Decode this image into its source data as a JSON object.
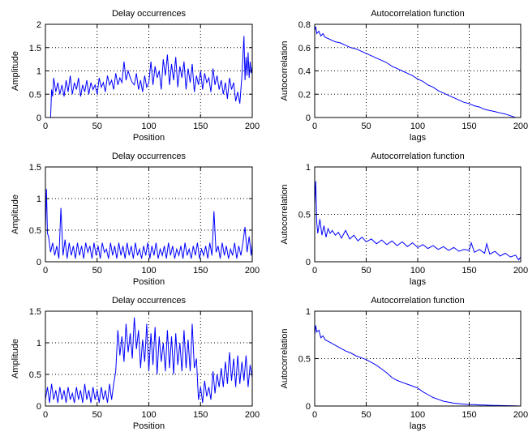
{
  "figure": {
    "background": "#ffffff",
    "line_color": "#0000ff",
    "grid_color": "#000000"
  },
  "chart_data": [
    {
      "type": "line",
      "title": "Delay occurrences",
      "xlabel": "Position",
      "ylabel": "Amplitude",
      "xlim": [
        0,
        200
      ],
      "ylim": [
        0,
        2
      ],
      "xticks": [
        0,
        50,
        100,
        150,
        200
      ],
      "yticks": [
        0,
        0.5,
        1,
        1.5,
        2
      ],
      "xtick_labels": [
        "0",
        "50",
        "100",
        "150",
        "200"
      ],
      "ytick_labels": [
        "0",
        "0.5",
        "1",
        "1.5",
        "2"
      ],
      "grid": true,
      "series": [
        {
          "color": "#0000ff",
          "x": [
            5,
            6,
            7,
            8,
            10,
            12,
            14,
            16,
            18,
            20,
            22,
            24,
            26,
            28,
            30,
            32,
            34,
            36,
            38,
            40,
            42,
            44,
            46,
            48,
            50,
            52,
            54,
            56,
            58,
            60,
            62,
            64,
            66,
            68,
            70,
            72,
            74,
            76,
            78,
            80,
            82,
            84,
            86,
            88,
            90,
            92,
            94,
            96,
            98,
            100,
            102,
            104,
            106,
            108,
            110,
            112,
            114,
            116,
            118,
            120,
            122,
            124,
            126,
            128,
            130,
            132,
            134,
            136,
            138,
            140,
            142,
            144,
            146,
            148,
            150,
            152,
            154,
            156,
            158,
            160,
            162,
            164,
            166,
            168,
            170,
            172,
            174,
            176,
            178,
            180,
            182,
            184,
            186,
            188,
            190,
            192,
            193,
            194,
            195,
            196,
            197,
            198,
            199,
            200
          ],
          "y": [
            0,
            0.6,
            0.45,
            0.85,
            0.55,
            0.75,
            0.5,
            0.7,
            0.45,
            0.8,
            0.55,
            0.9,
            0.5,
            0.75,
            0.6,
            0.85,
            0.45,
            0.7,
            0.55,
            0.8,
            0.5,
            0.75,
            0.6,
            0.7,
            0.5,
            0.85,
            0.65,
            0.75,
            0.55,
            0.9,
            0.7,
            0.8,
            0.6,
            0.95,
            0.7,
            0.85,
            0.75,
            1.2,
            0.8,
            1.0,
            0.85,
            0.75,
            0.7,
            0.95,
            0.6,
            0.8,
            0.55,
            0.9,
            0.65,
            0.75,
            1.2,
            0.7,
            1.1,
            0.85,
            1.0,
            0.6,
            1.25,
            0.9,
            1.35,
            0.7,
            1.15,
            0.8,
            1.3,
            0.65,
            1.1,
            0.85,
            1.2,
            0.6,
            1.05,
            0.75,
            1.15,
            0.55,
            0.9,
            0.7,
            1.0,
            0.6,
            0.95,
            0.75,
            0.85,
            0.55,
            1.05,
            0.7,
            0.9,
            0.6,
            0.8,
            0.5,
            0.75,
            0.4,
            0.85,
            0.6,
            0.75,
            0.35,
            0.55,
            0.3,
            0.9,
            1.75,
            0.8,
            1.3,
            0.9,
            1.4,
            0.85,
            1.2,
            0.95,
            1.1
          ]
        }
      ]
    },
    {
      "type": "line",
      "title": "Autocorrelation function",
      "xlabel": "lags",
      "ylabel": "Autocorrelation",
      "xlim": [
        0,
        200
      ],
      "ylim": [
        0,
        0.8
      ],
      "xticks": [
        0,
        50,
        100,
        150,
        200
      ],
      "yticks": [
        0,
        0.2,
        0.4,
        0.6,
        0.8
      ],
      "xtick_labels": [
        "0",
        "50",
        "100",
        "150",
        "200"
      ],
      "ytick_labels": [
        "0",
        "0.2",
        "0.4",
        "0.6",
        "0.8"
      ],
      "grid": true,
      "series": [
        {
          "color": "#0000ff",
          "x": [
            0,
            1,
            2,
            4,
            6,
            8,
            10,
            15,
            20,
            25,
            30,
            35,
            40,
            45,
            50,
            55,
            60,
            65,
            70,
            75,
            80,
            85,
            90,
            95,
            100,
            105,
            110,
            115,
            120,
            125,
            130,
            135,
            140,
            145,
            150,
            155,
            160,
            165,
            170,
            175,
            180,
            185,
            190,
            195
          ],
          "y": [
            0.75,
            0.78,
            0.72,
            0.74,
            0.7,
            0.72,
            0.69,
            0.67,
            0.65,
            0.64,
            0.62,
            0.6,
            0.59,
            0.57,
            0.55,
            0.53,
            0.51,
            0.49,
            0.47,
            0.44,
            0.42,
            0.4,
            0.38,
            0.36,
            0.33,
            0.31,
            0.28,
            0.26,
            0.23,
            0.21,
            0.19,
            0.17,
            0.15,
            0.13,
            0.12,
            0.1,
            0.09,
            0.07,
            0.06,
            0.05,
            0.04,
            0.03,
            0.015,
            0.0
          ]
        }
      ]
    },
    {
      "type": "line",
      "title": "Delay occurrences",
      "xlabel": "Position",
      "ylabel": "Amplitude",
      "xlim": [
        0,
        200
      ],
      "ylim": [
        0,
        1.5
      ],
      "xticks": [
        0,
        50,
        100,
        150,
        200
      ],
      "yticks": [
        0,
        0.5,
        1,
        1.5
      ],
      "xtick_labels": [
        "0",
        "50",
        "100",
        "150",
        "200"
      ],
      "ytick_labels": [
        "0",
        "0.5",
        "1",
        "1.5"
      ],
      "grid": true,
      "series": [
        {
          "color": "#0000ff",
          "x": [
            0,
            1,
            2,
            3,
            5,
            7,
            9,
            11,
            13,
            15,
            17,
            19,
            21,
            23,
            25,
            27,
            29,
            31,
            33,
            35,
            37,
            39,
            41,
            43,
            45,
            47,
            49,
            51,
            53,
            55,
            57,
            59,
            61,
            63,
            65,
            67,
            69,
            71,
            73,
            75,
            77,
            79,
            81,
            83,
            85,
            87,
            89,
            91,
            93,
            95,
            97,
            99,
            101,
            103,
            105,
            107,
            109,
            111,
            113,
            115,
            117,
            119,
            121,
            123,
            125,
            127,
            129,
            131,
            133,
            135,
            137,
            139,
            141,
            143,
            145,
            147,
            149,
            151,
            153,
            155,
            157,
            159,
            161,
            163,
            165,
            167,
            169,
            171,
            173,
            175,
            177,
            179,
            181,
            183,
            185,
            187,
            189,
            191,
            193,
            195,
            197,
            199,
            200
          ],
          "y": [
            0.5,
            1.15,
            0.45,
            0.4,
            0.15,
            0.3,
            0.1,
            0.25,
            0.05,
            0.85,
            0.1,
            0.35,
            0.05,
            0.3,
            0.1,
            0.25,
            0.05,
            0.3,
            0.1,
            0.25,
            0.05,
            0.3,
            0.15,
            0.25,
            0.05,
            0.3,
            0.1,
            0.25,
            0.05,
            0.3,
            0.15,
            0.2,
            0.05,
            0.3,
            0.1,
            0.25,
            0.05,
            0.3,
            0.1,
            0.25,
            0.05,
            0.3,
            0.1,
            0.25,
            0.05,
            0.3,
            0.1,
            0.2,
            0.05,
            0.25,
            0.1,
            0.3,
            0.05,
            0.25,
            0.1,
            0.3,
            0.05,
            0.2,
            0.1,
            0.25,
            0.05,
            0.3,
            0.1,
            0.25,
            0.05,
            0.2,
            0.1,
            0.25,
            0.05,
            0.3,
            0.1,
            0.2,
            0.05,
            0.25,
            0.1,
            0.3,
            0.05,
            0.2,
            0.1,
            0.25,
            0.05,
            0.3,
            0.1,
            0.8,
            0.15,
            0.25,
            0.05,
            0.3,
            0.1,
            0.25,
            0.05,
            0.2,
            0.1,
            0.3,
            0.05,
            0.25,
            0.1,
            0.3,
            0.55,
            0.15,
            0.4,
            0.1,
            0.3
          ]
        }
      ]
    },
    {
      "type": "line",
      "title": "Autocorrelation function",
      "xlabel": "lags",
      "ylabel": "Autocorrelation",
      "xlim": [
        0,
        200
      ],
      "ylim": [
        0,
        1
      ],
      "xticks": [
        0,
        50,
        100,
        150,
        200
      ],
      "yticks": [
        0,
        0.5,
        1
      ],
      "xtick_labels": [
        "0",
        "50",
        "100",
        "150",
        "200"
      ],
      "ytick_labels": [
        "0",
        "0.5",
        "1"
      ],
      "grid": true,
      "series": [
        {
          "color": "#0000ff",
          "x": [
            0,
            1,
            2,
            3,
            5,
            7,
            9,
            11,
            13,
            15,
            17,
            20,
            23,
            26,
            30,
            34,
            38,
            42,
            46,
            50,
            55,
            60,
            65,
            70,
            75,
            80,
            85,
            90,
            95,
            100,
            105,
            110,
            115,
            120,
            125,
            130,
            135,
            140,
            145,
            150,
            152,
            155,
            160,
            165,
            167,
            170,
            175,
            180,
            185,
            190,
            195,
            198,
            200
          ],
          "y": [
            0.6,
            0.85,
            0.42,
            0.3,
            0.45,
            0.28,
            0.38,
            0.26,
            0.35,
            0.3,
            0.33,
            0.28,
            0.31,
            0.25,
            0.33,
            0.24,
            0.28,
            0.22,
            0.26,
            0.21,
            0.24,
            0.19,
            0.23,
            0.18,
            0.22,
            0.17,
            0.21,
            0.16,
            0.2,
            0.15,
            0.18,
            0.14,
            0.17,
            0.13,
            0.16,
            0.12,
            0.15,
            0.11,
            0.13,
            0.12,
            0.2,
            0.1,
            0.13,
            0.09,
            0.19,
            0.08,
            0.11,
            0.06,
            0.09,
            0.05,
            0.07,
            0.02,
            0.05
          ]
        }
      ]
    },
    {
      "type": "line",
      "title": "Delay occurrences",
      "xlabel": "Position",
      "ylabel": "Amplitude",
      "xlim": [
        0,
        200
      ],
      "ylim": [
        0,
        1.5
      ],
      "xticks": [
        0,
        50,
        100,
        150,
        200
      ],
      "yticks": [
        0,
        0.5,
        1,
        1.5
      ],
      "xtick_labels": [
        "0",
        "50",
        "100",
        "150",
        "200"
      ],
      "ytick_labels": [
        "0",
        "0.5",
        "1",
        "1.5"
      ],
      "grid": true,
      "series": [
        {
          "color": "#0000ff",
          "x": [
            0,
            2,
            4,
            6,
            8,
            10,
            12,
            14,
            16,
            18,
            20,
            22,
            24,
            26,
            28,
            30,
            32,
            34,
            36,
            38,
            40,
            42,
            44,
            46,
            48,
            50,
            52,
            54,
            56,
            58,
            60,
            62,
            64,
            66,
            68,
            70,
            72,
            74,
            76,
            78,
            80,
            82,
            84,
            86,
            88,
            90,
            92,
            94,
            96,
            98,
            100,
            102,
            104,
            106,
            108,
            110,
            112,
            114,
            116,
            118,
            120,
            122,
            124,
            126,
            128,
            130,
            132,
            134,
            136,
            138,
            140,
            142,
            144,
            146,
            148,
            150,
            152,
            154,
            156,
            158,
            160,
            162,
            164,
            166,
            168,
            170,
            172,
            174,
            176,
            178,
            180,
            182,
            184,
            186,
            188,
            190,
            192,
            194,
            196,
            198,
            200
          ],
          "y": [
            0.1,
            0.3,
            0.05,
            0.35,
            0.1,
            0.25,
            0.05,
            0.3,
            0.1,
            0.25,
            0.05,
            0.3,
            0.1,
            0.2,
            0.05,
            0.3,
            0.1,
            0.25,
            0.05,
            0.35,
            0.1,
            0.25,
            0.05,
            0.3,
            0.1,
            0.25,
            0.05,
            0.3,
            0.1,
            0.25,
            0.05,
            0.35,
            0.1,
            0.35,
            0.55,
            1.2,
            0.8,
            1.1,
            0.7,
            1.3,
            0.85,
            1.15,
            0.75,
            1.4,
            0.9,
            1.2,
            0.6,
            1.05,
            0.7,
            1.3,
            0.55,
            1.15,
            0.65,
            1.25,
            0.5,
            1.1,
            0.7,
            1.0,
            0.55,
            1.2,
            0.6,
            1.1,
            0.5,
            1.15,
            0.65,
            1.0,
            0.55,
            1.2,
            0.6,
            1.05,
            0.55,
            1.3,
            0.6,
            0.75,
            0.1,
            0.3,
            0.05,
            0.4,
            0.15,
            0.3,
            0.1,
            0.55,
            0.2,
            0.5,
            0.3,
            0.6,
            0.3,
            0.7,
            0.35,
            0.85,
            0.4,
            0.75,
            0.3,
            0.8,
            0.35,
            0.7,
            0.4,
            0.8,
            0.3,
            0.65,
            0.45
          ]
        }
      ]
    },
    {
      "type": "line",
      "title": "Autocorrelation function",
      "xlabel": "lags",
      "ylabel": "Autocorrelation",
      "xlim": [
        0,
        200
      ],
      "ylim": [
        0,
        1
      ],
      "xticks": [
        0,
        50,
        100,
        150,
        200
      ],
      "yticks": [
        0,
        0.5,
        1
      ],
      "xtick_labels": [
        "0",
        "50",
        "100",
        "150",
        "200"
      ],
      "ytick_labels": [
        "0",
        "0.5",
        "1"
      ],
      "grid": true,
      "series": [
        {
          "color": "#0000ff",
          "x": [
            0,
            1,
            2,
            4,
            6,
            8,
            10,
            15,
            20,
            25,
            30,
            35,
            40,
            45,
            50,
            55,
            60,
            65,
            70,
            75,
            80,
            85,
            90,
            95,
            100,
            105,
            110,
            115,
            120,
            125,
            130,
            135,
            140,
            145,
            150,
            155,
            160,
            165,
            170,
            175,
            180,
            185,
            190,
            195,
            200
          ],
          "y": [
            0.75,
            0.85,
            0.78,
            0.8,
            0.72,
            0.74,
            0.7,
            0.67,
            0.64,
            0.61,
            0.58,
            0.56,
            0.53,
            0.51,
            0.49,
            0.46,
            0.43,
            0.39,
            0.35,
            0.3,
            0.27,
            0.25,
            0.23,
            0.21,
            0.19,
            0.15,
            0.12,
            0.09,
            0.07,
            0.05,
            0.04,
            0.03,
            0.025,
            0.02,
            0.015,
            0.015,
            0.01,
            0.01,
            0.008,
            0.006,
            0.005,
            0.004,
            0.003,
            0.002,
            0.0
          ]
        }
      ]
    }
  ]
}
